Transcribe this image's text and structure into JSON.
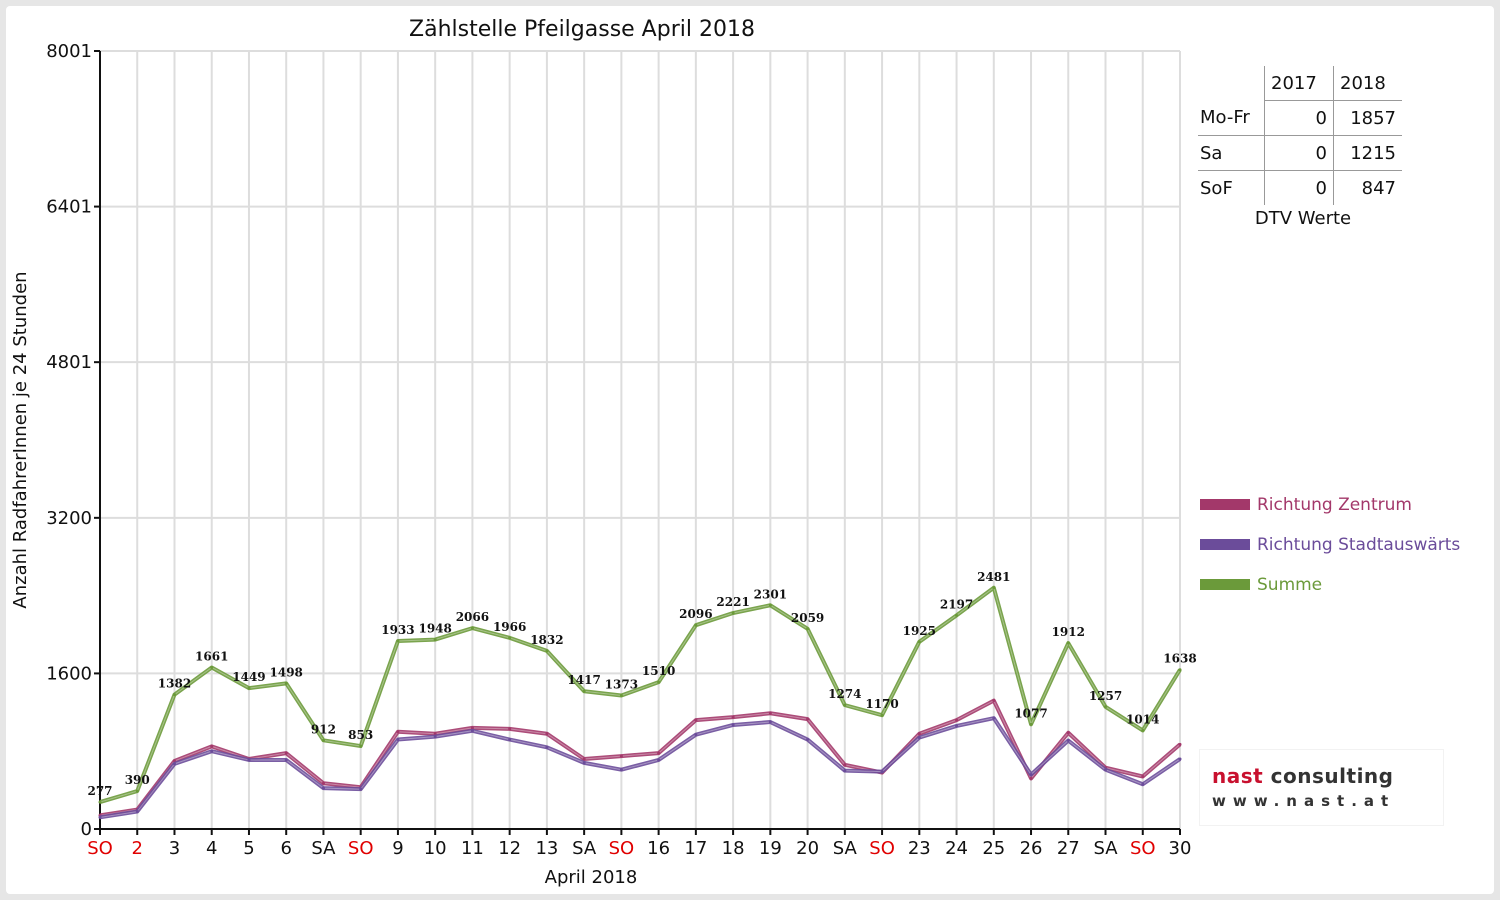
{
  "chart_data": {
    "type": "line",
    "title": "Zählstelle Pfeilgasse April 2018",
    "xlabel": "April 2018",
    "ylabel": "Anzahl RadfahrerInnen je 24 Stunden",
    "ylim": [
      0,
      8001
    ],
    "yticks": [
      "0",
      "1600",
      "3200",
      "4801",
      "6401",
      "8001"
    ],
    "ytick_values": [
      0,
      1600,
      3200,
      4801,
      6401,
      8001
    ],
    "grid": true,
    "legend_position": "right",
    "categories": [
      "SO",
      "2",
      "3",
      "4",
      "5",
      "6",
      "SA",
      "SO",
      "9",
      "10",
      "11",
      "12",
      "13",
      "SA",
      "SO",
      "16",
      "17",
      "18",
      "19",
      "20",
      "SA",
      "SO",
      "23",
      "24",
      "25",
      "26",
      "27",
      "SA",
      "SO",
      "30"
    ],
    "category_colors": [
      "#e00000",
      "#e00000",
      "#111111",
      "#111111",
      "#111111",
      "#111111",
      "#111111",
      "#e00000",
      "#111111",
      "#111111",
      "#111111",
      "#111111",
      "#111111",
      "#111111",
      "#e00000",
      "#111111",
      "#111111",
      "#111111",
      "#111111",
      "#111111",
      "#111111",
      "#e00000",
      "#111111",
      "#111111",
      "#111111",
      "#111111",
      "#111111",
      "#111111",
      "#e00000",
      "#111111"
    ],
    "series": [
      {
        "name": "Richtung Zentrum",
        "color": "#a3386a",
        "values": [
          140,
          200,
          700,
          850,
          720,
          780,
          470,
          430,
          1000,
          980,
          1040,
          1030,
          980,
          720,
          750,
          780,
          1120,
          1150,
          1190,
          1130,
          660,
          580,
          980,
          1120,
          1320,
          520,
          990,
          630,
          540,
          870
        ]
      },
      {
        "name": "Richtung Stadtauswärts",
        "color": "#6b4c9a",
        "values": [
          120,
          180,
          670,
          800,
          710,
          710,
          420,
          410,
          920,
          950,
          1010,
          920,
          840,
          680,
          610,
          710,
          970,
          1070,
          1100,
          920,
          600,
          590,
          940,
          1060,
          1140,
          560,
          910,
          610,
          460,
          720
        ]
      },
      {
        "name": "Summe",
        "color": "#6b9a3a",
        "values": [
          277,
          390,
          1382,
          1661,
          1449,
          1498,
          912,
          853,
          1933,
          1948,
          2066,
          1966,
          1832,
          1417,
          1373,
          1510,
          2096,
          2221,
          2301,
          2059,
          1274,
          1170,
          1925,
          2197,
          2481,
          1077,
          1912,
          1257,
          1014,
          1638
        ],
        "labels": [
          "277",
          "390",
          "1382",
          "1661",
          "1449",
          "1498",
          "912",
          "853",
          "1933",
          "1948",
          "2066",
          "1966",
          "1832",
          "1417",
          "1373",
          "1510",
          "2096",
          "2221",
          "2301",
          "2059",
          "1274",
          "1170",
          "1925",
          "2197",
          "2481",
          "1077",
          "1912",
          "1257",
          "1014",
          "1638"
        ]
      }
    ]
  },
  "dtv_table": {
    "headers": [
      "",
      "2017",
      "2018"
    ],
    "rows": [
      {
        "label": "Mo-Fr",
        "v2017": "0",
        "v2018": "1857"
      },
      {
        "label": "Sa",
        "v2017": "0",
        "v2018": "1215"
      },
      {
        "label": "SoF",
        "v2017": "0",
        "v2018": "847"
      }
    ],
    "caption": "DTV Werte"
  },
  "logo": {
    "brand_part1": "nast",
    "brand_part2": "consulting",
    "url": "www.nast.at"
  }
}
